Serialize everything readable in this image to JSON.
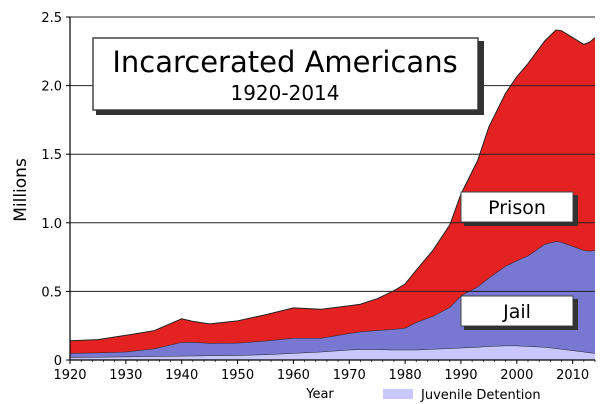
{
  "chart_data": {
    "type": "area",
    "stacked": true,
    "title": "Incarcerated Americans",
    "subtitle": "1920-2014",
    "xlabel": "Year",
    "ylabel": "Millions",
    "xlim": [
      1920,
      2014
    ],
    "ylim": [
      0,
      2.5
    ],
    "xticks": [
      1920,
      1930,
      1940,
      1950,
      1960,
      1970,
      1980,
      1990,
      2000,
      2010
    ],
    "yticks": [
      "0",
      "0.5",
      "1.0",
      "1.5",
      "2.0",
      "2.5"
    ],
    "grid": "horizontal",
    "x": [
      1920,
      1925,
      1930,
      1935,
      1940,
      1942,
      1945,
      1950,
      1955,
      1960,
      1965,
      1970,
      1972,
      1975,
      1978,
      1980,
      1982,
      1985,
      1988,
      1990,
      1993,
      1995,
      1998,
      2000,
      2002,
      2005,
      2007,
      2008,
      2010,
      2012,
      2013,
      2014
    ],
    "series": [
      {
        "name": "Juvenile Detention",
        "color": "#c8c8ff",
        "values": [
          0.02,
          0.022,
          0.025,
          0.028,
          0.03,
          0.031,
          0.033,
          0.035,
          0.04,
          0.05,
          0.06,
          0.075,
          0.077,
          0.077,
          0.075,
          0.074,
          0.075,
          0.08,
          0.085,
          0.09,
          0.095,
          0.1,
          0.105,
          0.105,
          0.1,
          0.095,
          0.085,
          0.08,
          0.07,
          0.06,
          0.055,
          0.05
        ]
      },
      {
        "name": "Jail",
        "color": "#7878d2",
        "values": [
          0.03,
          0.032,
          0.035,
          0.055,
          0.1,
          0.1,
          0.09,
          0.09,
          0.1,
          0.11,
          0.1,
          0.12,
          0.13,
          0.14,
          0.15,
          0.16,
          0.2,
          0.24,
          0.3,
          0.38,
          0.44,
          0.5,
          0.58,
          0.62,
          0.66,
          0.75,
          0.78,
          0.78,
          0.76,
          0.74,
          0.74,
          0.75
        ]
      },
      {
        "name": "Prison",
        "color": "#e52222",
        "values": [
          0.09,
          0.095,
          0.12,
          0.13,
          0.17,
          0.15,
          0.14,
          0.16,
          0.19,
          0.22,
          0.21,
          0.2,
          0.2,
          0.23,
          0.28,
          0.32,
          0.38,
          0.48,
          0.6,
          0.74,
          0.92,
          1.1,
          1.26,
          1.34,
          1.4,
          1.48,
          1.54,
          1.54,
          1.52,
          1.5,
          1.52,
          1.55
        ]
      }
    ],
    "legend": [
      {
        "label": "Prison",
        "position": "inside"
      },
      {
        "label": "Jail",
        "position": "inside"
      },
      {
        "label": "Juvenile Detention",
        "position": "bottom-right"
      }
    ]
  }
}
